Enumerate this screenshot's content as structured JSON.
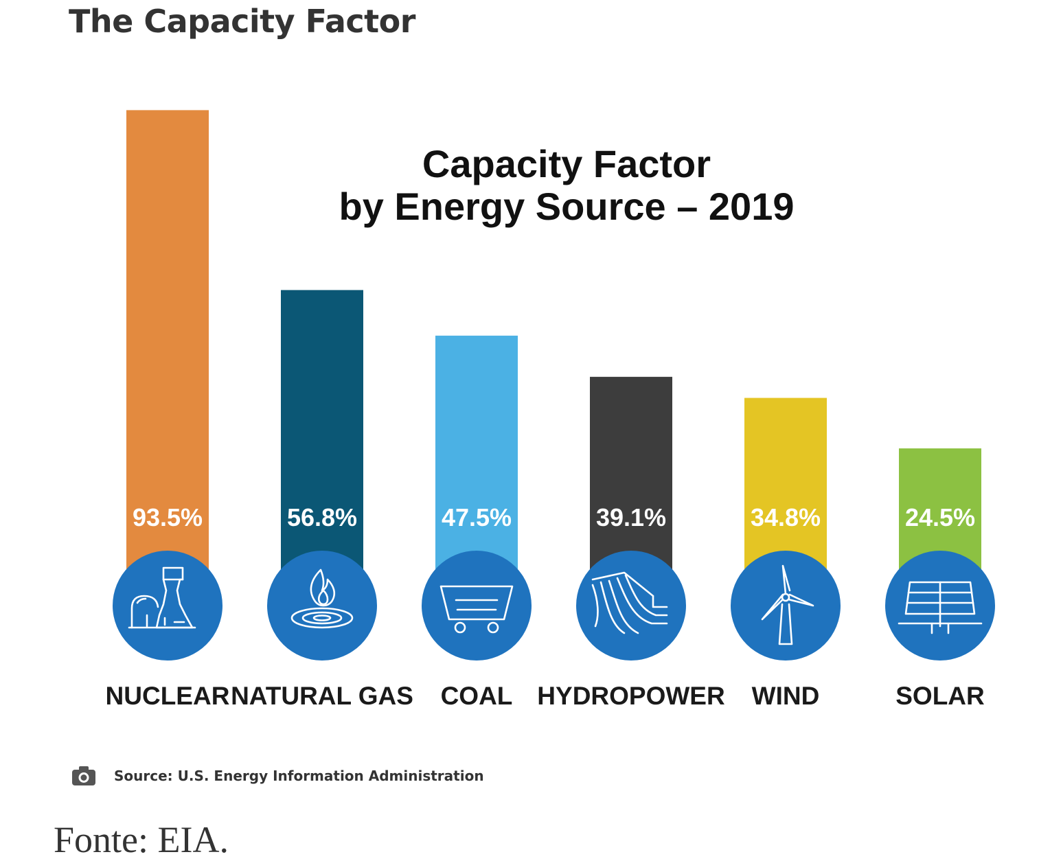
{
  "page_title": "The Capacity Factor",
  "source": "Source: U.S. Energy Information Administration",
  "caption": "Fonte: EIA.",
  "icons": {
    "source": "camera-icon"
  },
  "chart_data": {
    "type": "bar",
    "title": "Capacity Factor",
    "subtitle": "by Energy Source – 2019",
    "xlabel": "",
    "ylabel": "",
    "ylim": [
      0,
      100
    ],
    "grid": false,
    "legend": "none",
    "categories": [
      "NUCLEAR",
      "NATURAL GAS",
      "COAL",
      "HYDROPOWER",
      "WIND",
      "SOLAR"
    ],
    "values": [
      93.5,
      56.8,
      47.5,
      39.1,
      34.8,
      24.5
    ],
    "value_labels": [
      "93.5%",
      "56.8%",
      "47.5%",
      "39.1%",
      "34.8%",
      "24.5%"
    ],
    "colors": [
      "#E38A3F",
      "#0B5775",
      "#4BB1E4",
      "#3D3D3D",
      "#E4C524",
      "#8CC142"
    ],
    "icon_circle_color": "#1F73BE",
    "icons": [
      "nuclear-plant-icon",
      "gas-flame-icon",
      "coal-cart-icon",
      "dam-icon",
      "wind-turbine-icon",
      "solar-panel-icon"
    ]
  }
}
